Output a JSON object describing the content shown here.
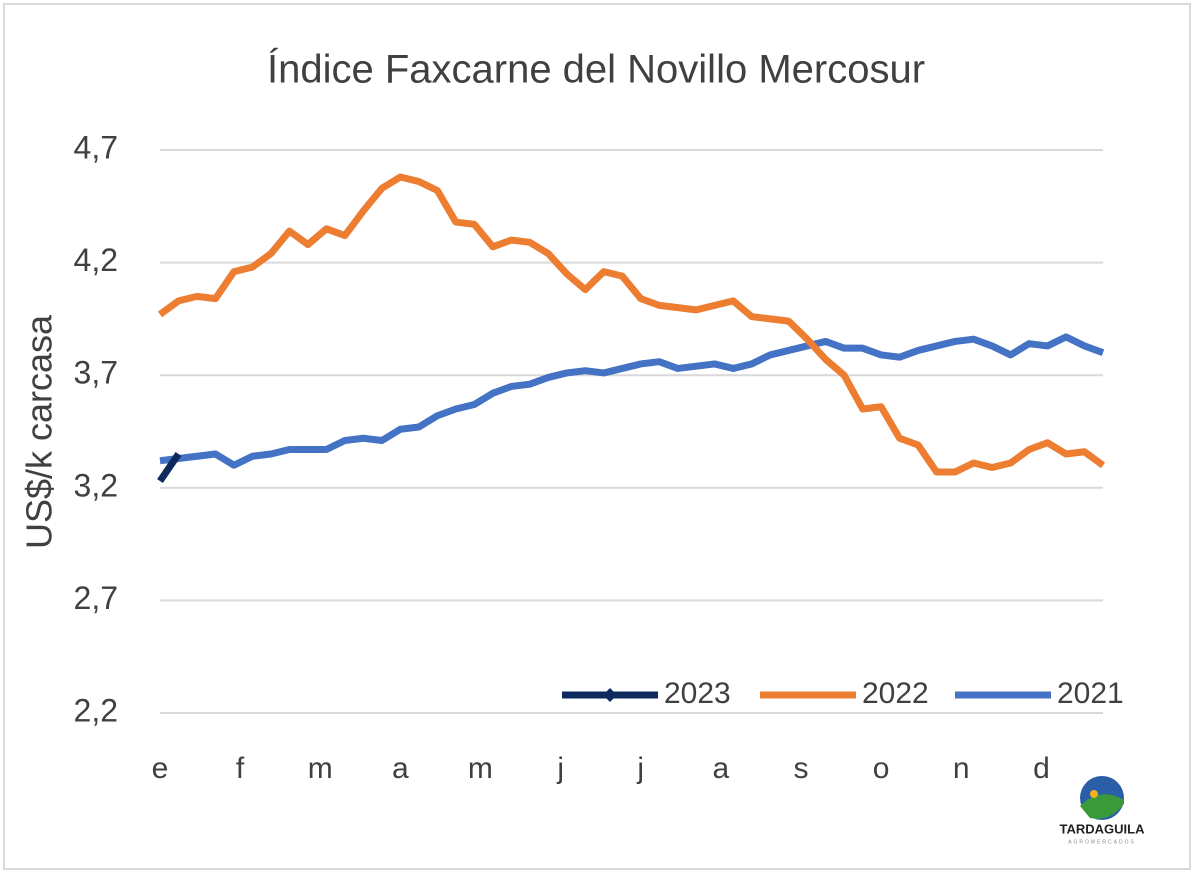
{
  "chart_data": {
    "type": "line",
    "title": "Índice Faxcarne del Novillo Mercosur",
    "y_label": "US$/k carcasa",
    "x": [
      1,
      2,
      3,
      4,
      5,
      6,
      7,
      8,
      9,
      10,
      11,
      12,
      13,
      14,
      15,
      16,
      17,
      18,
      19,
      20,
      21,
      22,
      23,
      24,
      25,
      26,
      27,
      28,
      29,
      30,
      31,
      32,
      33,
      34,
      35,
      36,
      37,
      38,
      39,
      40,
      41,
      42,
      43,
      44,
      45,
      46,
      47,
      48,
      49,
      50,
      51,
      52
    ],
    "xlim": [
      1,
      52
    ],
    "xticks": [
      {
        "value": 1,
        "label": "e"
      },
      {
        "value": 5.33,
        "label": "f"
      },
      {
        "value": 9.67,
        "label": "m"
      },
      {
        "value": 14,
        "label": "a"
      },
      {
        "value": 18.33,
        "label": "m"
      },
      {
        "value": 22.67,
        "label": "j"
      },
      {
        "value": 27,
        "label": "j"
      },
      {
        "value": 31.33,
        "label": "a"
      },
      {
        "value": 35.67,
        "label": "s"
      },
      {
        "value": 40,
        "label": "o"
      },
      {
        "value": 44.33,
        "label": "n"
      },
      {
        "value": 48.67,
        "label": "d"
      }
    ],
    "ylim": [
      2.2,
      4.7
    ],
    "yticks": [
      {
        "value": 2.2,
        "label": "2,2"
      },
      {
        "value": 2.7,
        "label": "2,7"
      },
      {
        "value": 3.2,
        "label": "3,2"
      },
      {
        "value": 3.7,
        "label": "3,7"
      },
      {
        "value": 4.2,
        "label": "4,2"
      },
      {
        "value": 4.7,
        "label": "4,7"
      }
    ],
    "grid": true,
    "legend": "bottom-right",
    "series": [
      {
        "name": "2023",
        "color": "#0d2a5e",
        "marker": "diamond",
        "values": [
          3.23,
          3.35,
          null,
          null,
          null,
          null,
          null,
          null,
          null,
          null,
          null,
          null,
          null,
          null,
          null,
          null,
          null,
          null,
          null,
          null,
          null,
          null,
          null,
          null,
          null,
          null,
          null,
          null,
          null,
          null,
          null,
          null,
          null,
          null,
          null,
          null,
          null,
          null,
          null,
          null,
          null,
          null,
          null,
          null,
          null,
          null,
          null,
          null,
          null,
          null,
          null,
          null
        ]
      },
      {
        "name": "2022",
        "color": "#ed7d31",
        "values": [
          3.97,
          4.03,
          4.05,
          4.04,
          4.16,
          4.18,
          4.24,
          4.34,
          4.28,
          4.35,
          4.32,
          4.43,
          4.53,
          4.58,
          4.56,
          4.52,
          4.38,
          4.37,
          4.27,
          4.3,
          4.29,
          4.24,
          4.15,
          4.08,
          4.16,
          4.14,
          4.04,
          4.01,
          4.0,
          3.99,
          4.01,
          4.03,
          3.96,
          3.95,
          3.94,
          3.86,
          3.77,
          3.7,
          3.55,
          3.56,
          3.42,
          3.39,
          3.27,
          3.27,
          3.31,
          3.29,
          3.31,
          3.37,
          3.4,
          3.35,
          3.36,
          3.3
        ]
      },
      {
        "name": "2021",
        "color": "#4472c4",
        "values": [
          3.32,
          3.33,
          3.34,
          3.35,
          3.3,
          3.34,
          3.35,
          3.37,
          3.37,
          3.37,
          3.41,
          3.42,
          3.41,
          3.46,
          3.47,
          3.52,
          3.55,
          3.57,
          3.62,
          3.65,
          3.66,
          3.69,
          3.71,
          3.72,
          3.71,
          3.73,
          3.75,
          3.76,
          3.73,
          3.74,
          3.75,
          3.73,
          3.75,
          3.79,
          3.81,
          3.83,
          3.85,
          3.82,
          3.82,
          3.79,
          3.78,
          3.81,
          3.83,
          3.85,
          3.86,
          3.83,
          3.79,
          3.84,
          3.83,
          3.87,
          3.83,
          3.8
        ]
      }
    ]
  },
  "logo": {
    "name": "TARDAGUILA",
    "tagline": "AGROMERCADOS"
  }
}
